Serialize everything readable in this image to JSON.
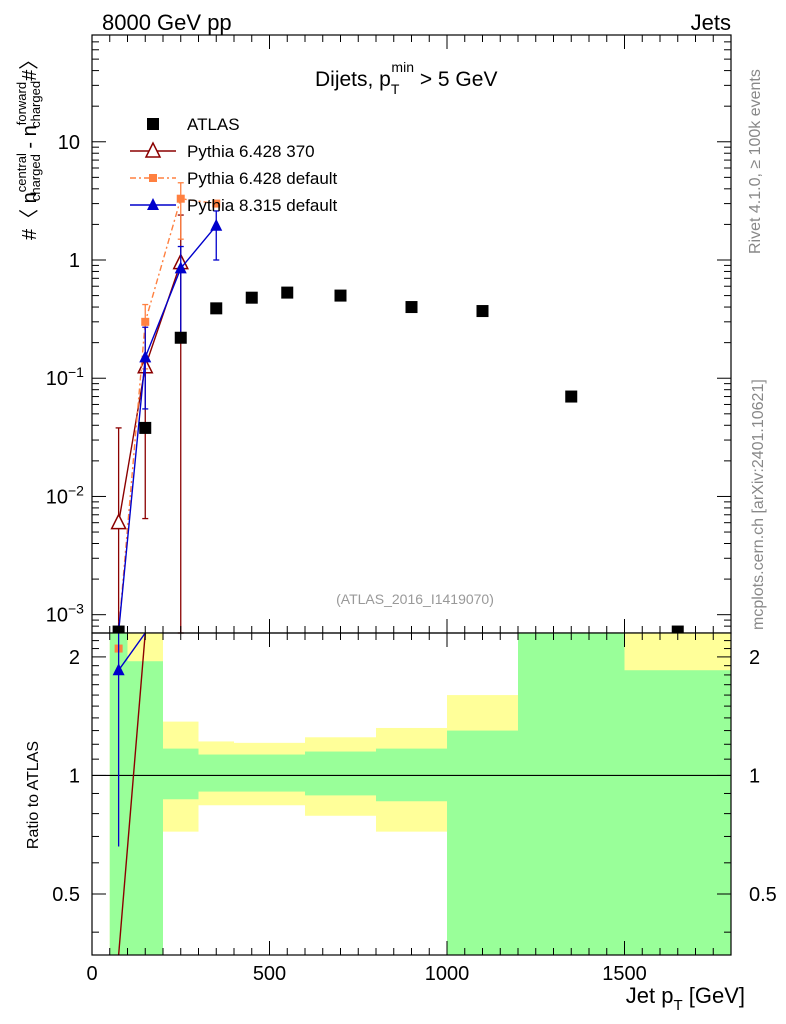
{
  "header": {
    "left": "8000 GeV pp",
    "right": "Jets"
  },
  "side_labels": {
    "rivet": "Rivet 4.1.0, ≥ 100k events",
    "mcplots": "mcplots.cern.ch [arXiv:2401.10621]"
  },
  "colors": {
    "atlas": "#000000",
    "pythia6_370": "#8b0000",
    "pythia6_default": "#ff8040",
    "pythia8": "#0000cc",
    "band_inner": "#99ff99",
    "band_outer": "#ffff99",
    "watermark": "#999999"
  },
  "chart_data": [
    {
      "type": "scatter",
      "panel": "main",
      "title_main": "Dijets, p",
      "title_sub": "T",
      "title_sup": "min",
      "title_rest": " > 5 GeV",
      "ylabel": "#〈 n",
      "ylabel_sup1": "central",
      "ylabel_sub1": "charged",
      "ylabel_mid": " - n",
      "ylabel_sup2": "forward",
      "ylabel_sub2": "charged",
      "ylabel_end": "#〉",
      "yscale": "log",
      "xlim": [
        0,
        1800
      ],
      "ylim": [
        0.0007,
        80
      ],
      "watermark": "(ATLAS_2016_I1419070)",
      "y_ticks": [
        {
          "value": 0.001,
          "base": "10",
          "exp": "−3"
        },
        {
          "value": 0.01,
          "base": "10",
          "exp": "−2"
        },
        {
          "value": 0.1,
          "base": "10",
          "exp": "−1"
        },
        {
          "value": 1,
          "base": "1",
          "exp": ""
        },
        {
          "value": 10,
          "base": "10",
          "exp": ""
        }
      ],
      "series": [
        {
          "name": "ATLAS",
          "marker": "square",
          "color_key": "atlas",
          "points": [
            {
              "x": 75,
              "y": 0.00072
            },
            {
              "x": 150,
              "y": 0.038
            },
            {
              "x": 250,
              "y": 0.22
            },
            {
              "x": 350,
              "y": 0.39
            },
            {
              "x": 450,
              "y": 0.48
            },
            {
              "x": 550,
              "y": 0.53
            },
            {
              "x": 700,
              "y": 0.5
            },
            {
              "x": 900,
              "y": 0.4
            },
            {
              "x": 1100,
              "y": 0.37
            },
            {
              "x": 1350,
              "y": 0.07
            },
            {
              "x": 1650,
              "y": 0.00072
            }
          ]
        },
        {
          "name": "Pythia 6.428 370",
          "marker": "open-triangle",
          "color_key": "pythia6_370",
          "points": [
            {
              "x": 75,
              "y": 0.006,
              "lo": 0.0007,
              "hi": 0.038
            },
            {
              "x": 150,
              "y": 0.125,
              "lo": 0.0065,
              "hi": 0.3
            },
            {
              "x": 250,
              "y": 0.95,
              "lo": 0.0007,
              "hi": 2.4
            }
          ]
        },
        {
          "name": "Pythia 6.428 default",
          "marker": "square-small",
          "color_key": "pythia6_default",
          "points": [
            {
              "x": 75,
              "y": 0.00072
            },
            {
              "x": 150,
              "y": 0.3,
              "lo": 0.12,
              "hi": 0.42
            },
            {
              "x": 250,
              "y": 3.3,
              "lo": 1.5,
              "hi": 4.5
            },
            {
              "x": 350,
              "y": 3.0
            }
          ]
        },
        {
          "name": "Pythia 8.315 default",
          "marker": "triangle",
          "color_key": "pythia8",
          "points": [
            {
              "x": 75,
              "y": 0.00072
            },
            {
              "x": 150,
              "y": 0.15,
              "lo": 0.055,
              "hi": 0.27
            },
            {
              "x": 250,
              "y": 0.85,
              "lo": 0.2,
              "hi": 1.3
            },
            {
              "x": 350,
              "y": 1.95,
              "lo": 1.0,
              "hi": 2.6
            }
          ]
        }
      ]
    },
    {
      "type": "line",
      "panel": "ratio",
      "ylabel": "Ratio to ATLAS",
      "xlabel": "Jet p",
      "xlabel_sub": "T",
      "xlabel_unit": " [GeV]",
      "xlim": [
        0,
        1800
      ],
      "ylim": [
        0.35,
        2.3
      ],
      "yscale": "log",
      "x_ticks": [
        "0",
        "500",
        "1000",
        "1500"
      ],
      "x_tick_values": [
        0,
        500,
        1000,
        1500
      ],
      "y_ticks": [
        "0.5",
        "1",
        "2"
      ],
      "y_tick_values": [
        0.5,
        1,
        2
      ],
      "bands": [
        {
          "x0": 50,
          "x1": 100,
          "inner_lo": 0.35,
          "inner_hi": 2.3,
          "outer_lo": 0.35,
          "outer_hi": 2.3
        },
        {
          "x0": 100,
          "x1": 200,
          "inner_lo": 0.35,
          "inner_hi": 1.95,
          "outer_lo": 0.35,
          "outer_hi": 2.3
        },
        {
          "x0": 200,
          "x1": 300,
          "inner_lo": 0.87,
          "inner_hi": 1.17,
          "outer_lo": 0.72,
          "outer_hi": 1.37
        },
        {
          "x0": 300,
          "x1": 400,
          "inner_lo": 0.91,
          "inner_hi": 1.13,
          "outer_lo": 0.84,
          "outer_hi": 1.22
        },
        {
          "x0": 400,
          "x1": 600,
          "inner_lo": 0.91,
          "inner_hi": 1.13,
          "outer_lo": 0.84,
          "outer_hi": 1.21
        },
        {
          "x0": 600,
          "x1": 800,
          "inner_lo": 0.89,
          "inner_hi": 1.15,
          "outer_lo": 0.79,
          "outer_hi": 1.25
        },
        {
          "x0": 800,
          "x1": 1000,
          "inner_lo": 0.86,
          "inner_hi": 1.17,
          "outer_lo": 0.72,
          "outer_hi": 1.32
        },
        {
          "x0": 1000,
          "x1": 1200,
          "inner_lo": 0.35,
          "inner_hi": 1.3,
          "outer_lo": 0.35,
          "outer_hi": 1.6
        },
        {
          "x0": 1200,
          "x1": 1500,
          "inner_lo": 0.35,
          "inner_hi": 2.3,
          "outer_lo": 0.35,
          "outer_hi": 2.3
        },
        {
          "x0": 1500,
          "x1": 1800,
          "inner_lo": 0.35,
          "inner_hi": 1.85,
          "outer_lo": 0.35,
          "outer_hi": 2.3
        }
      ],
      "series": [
        {
          "name": "Pythia 6.428 370",
          "color_key": "pythia6_370",
          "points": [
            {
              "x": 75,
              "y": 0.35
            },
            {
              "x": 150,
              "y": 2.3
            }
          ]
        },
        {
          "name": "Pythia 6.428 default",
          "color_key": "pythia6_default",
          "points": [
            {
              "x": 75,
              "y": 2.1
            }
          ]
        },
        {
          "name": "Pythia 8.315 default",
          "color_key": "pythia8",
          "points": [
            {
              "x": 75,
              "y": 1.85,
              "lo": 0.66,
              "hi": 2.3
            },
            {
              "x": 150,
              "y": 2.3
            }
          ]
        }
      ]
    }
  ]
}
